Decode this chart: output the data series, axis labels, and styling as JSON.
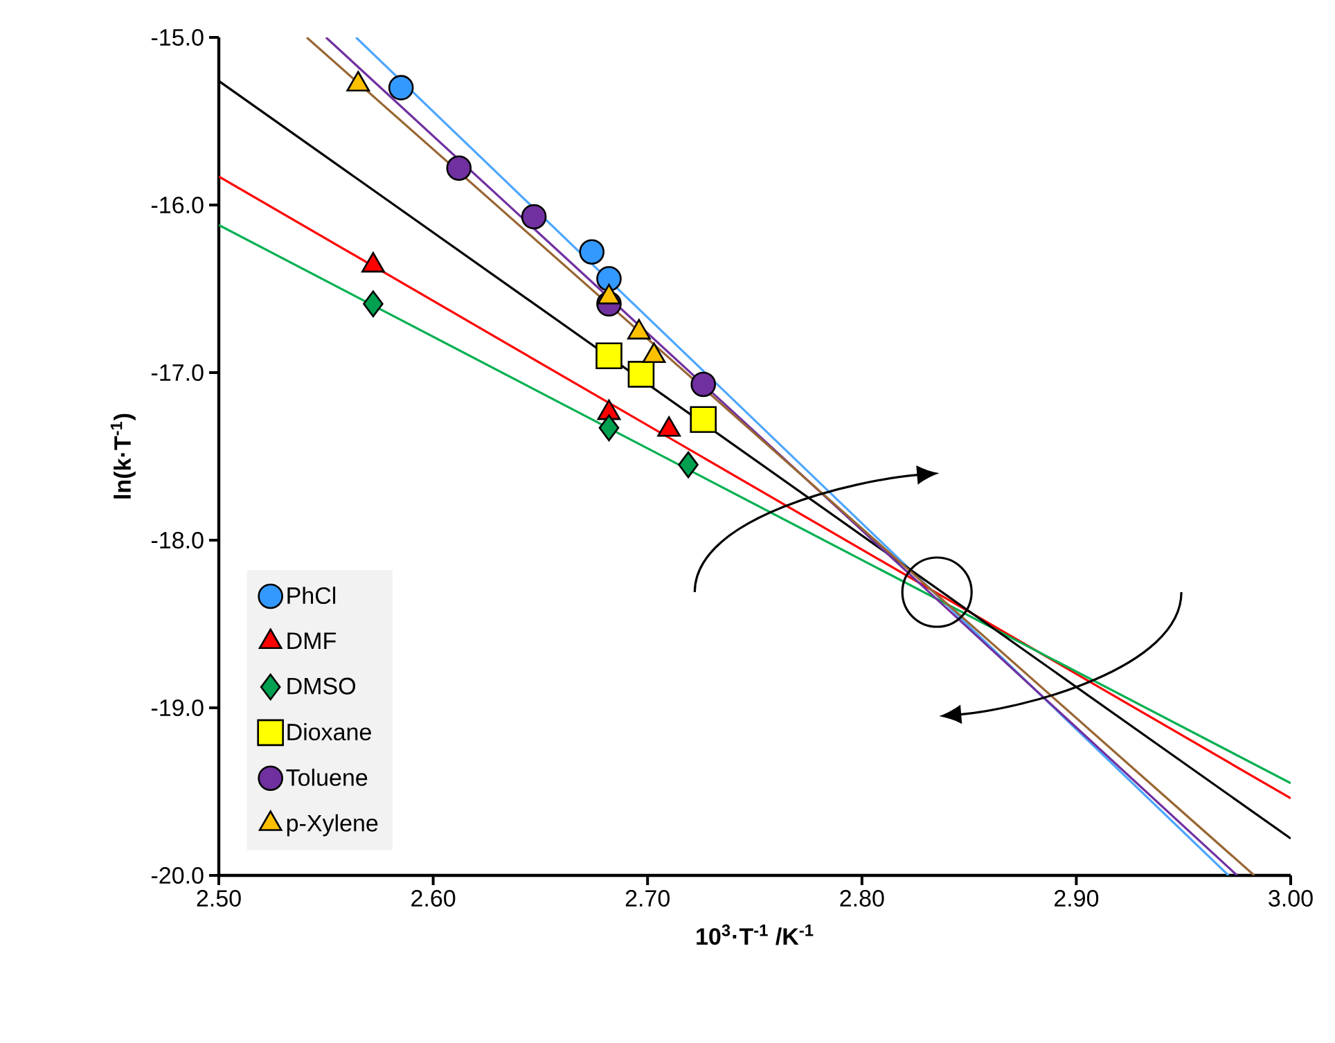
{
  "chart_data": {
    "type": "scatter",
    "xlabel": "10$^{3}$·T$^{-1}$ /K$^{-1}$",
    "ylabel": "ln(k·T$^{-1}$)",
    "xlim": [
      2.5,
      3.0
    ],
    "ylim": [
      -20.0,
      -15.0
    ],
    "xticks": [
      {
        "value": 2.5,
        "label": "2.50"
      },
      {
        "value": 2.6,
        "label": "2.60"
      },
      {
        "value": 2.7,
        "label": "2.70"
      },
      {
        "value": 2.8,
        "label": "2.80"
      },
      {
        "value": 2.9,
        "label": "2.90"
      },
      {
        "value": 3.0,
        "label": "3.00"
      }
    ],
    "yticks": [
      {
        "value": -20.0,
        "label": "-20.0"
      },
      {
        "value": -19.0,
        "label": "-19.0"
      },
      {
        "value": -18.0,
        "label": "-18.0"
      },
      {
        "value": -17.0,
        "label": "-17.0"
      },
      {
        "value": -16.0,
        "label": "-16.0"
      },
      {
        "value": -15.0,
        "label": "-15.0"
      }
    ],
    "grid": false,
    "legend": "bottom left",
    "series": [
      {
        "name": "PhCl",
        "marker": "circle",
        "color": "#3399ff",
        "x": [
          2.585,
          2.674,
          2.682
        ],
        "values": [
          -15.3,
          -16.28,
          -16.44
        ]
      },
      {
        "name": "DMF",
        "marker": "triangle",
        "color": "#ff0000",
        "x": [
          2.572,
          2.682,
          2.71
        ],
        "values": [
          -16.36,
          -17.24,
          -17.34
        ]
      },
      {
        "name": "DMSO",
        "marker": "diamond",
        "color": "#00a050",
        "x": [
          2.572,
          2.682,
          2.719
        ],
        "values": [
          -16.59,
          -17.33,
          -17.55
        ]
      },
      {
        "name": "Dioxane",
        "marker": "square",
        "color": "#ffff00",
        "x": [
          2.682,
          2.697,
          2.726
        ],
        "values": [
          -16.9,
          -17.01,
          -17.28
        ]
      },
      {
        "name": "Toluene",
        "marker": "circle",
        "color": "#7030a0",
        "x": [
          2.612,
          2.647,
          2.682,
          2.726
        ],
        "values": [
          -15.78,
          -16.07,
          -16.59,
          -17.07
        ]
      },
      {
        "name": "p-Xylene",
        "marker": "triangle",
        "color": "#ffc000",
        "x": [
          2.565,
          2.682,
          2.696,
          2.703
        ],
        "values": [
          -15.28,
          -16.55,
          -16.76,
          -16.9
        ]
      },
      {
        "type": "line",
        "marker": "none",
        "color": "#4da6ff",
        "x": [
          2.564,
          2.971
        ],
        "values": [
          -15.0,
          -20.0
        ]
      },
      {
        "type": "line",
        "marker": "none",
        "color": "#ff0000",
        "x": [
          2.5,
          3.0
        ],
        "values": [
          -15.83,
          -19.54
        ]
      },
      {
        "type": "line",
        "marker": "none",
        "color": "#00b050",
        "x": [
          2.5,
          3.0
        ],
        "values": [
          -16.12,
          -19.45
        ]
      },
      {
        "type": "line",
        "marker": "none",
        "color": "#000000",
        "x": [
          2.5,
          3.0
        ],
        "values": [
          -15.26,
          -19.78
        ]
      },
      {
        "type": "line",
        "marker": "none",
        "color": "#7030a0",
        "x": [
          2.55,
          2.975
        ],
        "values": [
          -15.0,
          -20.0
        ]
      },
      {
        "type": "line",
        "marker": "none",
        "color": "#996633",
        "x": [
          2.541,
          2.983
        ],
        "values": [
          -15.0,
          -20.0
        ]
      }
    ]
  }
}
